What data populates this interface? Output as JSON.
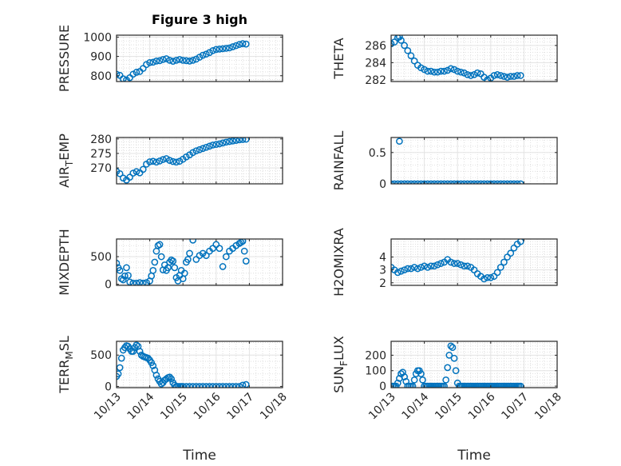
{
  "figure": {
    "title": "Figure 3 high",
    "xlabel_left": "Time",
    "xlabel_right": "Time",
    "marker_color": "#0072bd"
  },
  "chart_data": [
    {
      "type": "scatter",
      "name": "pressure",
      "ylabel": "PRESSURE",
      "xlim": [
        0,
        5
      ],
      "ylim": [
        770,
        1010
      ],
      "yticks": [
        800,
        900,
        1000
      ],
      "yticklabels": [
        "800",
        "900",
        "1000"
      ],
      "xticks": [
        0,
        1,
        2,
        3,
        4,
        5
      ],
      "x": [
        0.0,
        0.1,
        0.2,
        0.3,
        0.4,
        0.5,
        0.6,
        0.7,
        0.8,
        0.9,
        1.0,
        1.1,
        1.2,
        1.3,
        1.4,
        1.5,
        1.6,
        1.7,
        1.8,
        1.9,
        2.0,
        2.1,
        2.2,
        2.3,
        2.4,
        2.5,
        2.6,
        2.7,
        2.8,
        2.9,
        3.0,
        3.1,
        3.2,
        3.3,
        3.4,
        3.5,
        3.6,
        3.7,
        3.8,
        3.9
      ],
      "y": [
        808,
        802,
        784,
        778,
        790,
        808,
        818,
        822,
        838,
        858,
        868,
        870,
        876,
        878,
        884,
        888,
        880,
        875,
        880,
        884,
        880,
        878,
        876,
        880,
        886,
        896,
        906,
        912,
        920,
        930,
        936,
        938,
        940,
        942,
        944,
        950,
        956,
        962,
        966,
        964
      ]
    },
    {
      "type": "scatter",
      "name": "theta",
      "ylabel": "THETA",
      "xlim": [
        0,
        5
      ],
      "ylim": [
        281.8,
        287.2
      ],
      "yticks": [
        282,
        284,
        286
      ],
      "yticklabels": [
        "282",
        "284",
        "286"
      ],
      "xticks": [
        0,
        1,
        2,
        3,
        4,
        5
      ],
      "x": [
        0.0,
        0.1,
        0.2,
        0.25,
        0.3,
        0.4,
        0.5,
        0.6,
        0.7,
        0.8,
        0.9,
        1.0,
        1.1,
        1.2,
        1.3,
        1.4,
        1.5,
        1.6,
        1.7,
        1.8,
        1.9,
        2.0,
        2.1,
        2.2,
        2.3,
        2.4,
        2.5,
        2.6,
        2.7,
        2.8,
        2.9,
        3.0,
        3.1,
        3.2,
        3.3,
        3.4,
        3.5,
        3.6,
        3.7,
        3.8,
        3.9
      ],
      "y": [
        286.2,
        286.4,
        286.9,
        287.0,
        286.6,
        286.0,
        285.4,
        284.8,
        284.2,
        283.7,
        283.4,
        283.2,
        283.0,
        283.0,
        282.9,
        282.9,
        283.0,
        283.0,
        283.1,
        283.3,
        283.2,
        283.0,
        282.9,
        282.8,
        282.6,
        282.5,
        282.6,
        282.8,
        282.7,
        282.3,
        282.0,
        282.2,
        282.5,
        282.6,
        282.5,
        282.4,
        282.3,
        282.4,
        282.4,
        282.5,
        282.5
      ]
    },
    {
      "type": "scatter",
      "name": "air_temp",
      "ylabel": "AIR_TEMP",
      "ylabel_parts": [
        "AIR",
        "T",
        "EMP"
      ],
      "xlim": [
        0,
        5
      ],
      "ylim": [
        264.5,
        280.5
      ],
      "yticks": [
        270,
        275,
        280
      ],
      "yticklabels": [
        "270",
        "275",
        "280"
      ],
      "xticks": [
        0,
        1,
        2,
        3,
        4,
        5
      ],
      "x": [
        0.0,
        0.1,
        0.2,
        0.3,
        0.4,
        0.5,
        0.6,
        0.7,
        0.8,
        0.9,
        1.0,
        1.1,
        1.2,
        1.3,
        1.4,
        1.5,
        1.6,
        1.7,
        1.8,
        1.9,
        2.0,
        2.1,
        2.2,
        2.3,
        2.4,
        2.5,
        2.6,
        2.7,
        2.8,
        2.9,
        3.0,
        3.1,
        3.2,
        3.3,
        3.4,
        3.5,
        3.6,
        3.7,
        3.8,
        3.9
      ],
      "y": [
        268.8,
        268.0,
        266.5,
        265.8,
        266.8,
        268.2,
        268.7,
        268.3,
        269.5,
        271.3,
        272.1,
        272.3,
        272.0,
        272.4,
        272.9,
        273.2,
        272.6,
        272.2,
        272.0,
        272.3,
        273.0,
        273.8,
        274.5,
        275.3,
        275.9,
        276.3,
        276.7,
        277.1,
        277.5,
        277.9,
        278.1,
        278.3,
        278.6,
        278.9,
        279.1,
        279.3,
        279.5,
        279.7,
        279.8,
        279.9
      ]
    },
    {
      "type": "scatter",
      "name": "rainfall",
      "ylabel": "RAINFALL",
      "xlim": [
        0,
        5
      ],
      "ylim": [
        0,
        0.74
      ],
      "yticks": [
        0,
        0.5
      ],
      "yticklabels": [
        "0",
        "0.5"
      ],
      "xticks": [
        0,
        1,
        2,
        3,
        4,
        5
      ],
      "x": [
        0.0,
        0.1,
        0.2,
        0.25,
        0.3,
        0.4,
        0.5,
        0.6,
        0.7,
        0.8,
        0.9,
        1.0,
        1.1,
        1.2,
        1.3,
        1.4,
        1.5,
        1.6,
        1.7,
        1.8,
        1.9,
        2.0,
        2.1,
        2.2,
        2.3,
        2.4,
        2.5,
        2.6,
        2.7,
        2.8,
        2.9,
        3.0,
        3.1,
        3.2,
        3.3,
        3.4,
        3.5,
        3.6,
        3.7,
        3.8,
        3.9
      ],
      "y": [
        0,
        0,
        0,
        0.68,
        0,
        0,
        0,
        0,
        0,
        0,
        0,
        0,
        0,
        0,
        0,
        0,
        0,
        0,
        0,
        0,
        0,
        0,
        0,
        0,
        0,
        0,
        0,
        0,
        0,
        0,
        0,
        0,
        0,
        0,
        0,
        0,
        0,
        0,
        0,
        0,
        0
      ]
    },
    {
      "type": "scatter",
      "name": "mixdepth",
      "ylabel": "MIXDEPTH",
      "xlim": [
        0,
        5
      ],
      "ylim": [
        -20,
        820
      ],
      "yticks": [
        0,
        500
      ],
      "yticklabels": [
        "0",
        "500"
      ],
      "xticks": [
        0,
        1,
        2,
        3,
        4,
        5
      ],
      "x": [
        0.0,
        0.05,
        0.1,
        0.15,
        0.2,
        0.25,
        0.3,
        0.35,
        0.4,
        0.5,
        0.6,
        0.7,
        0.8,
        0.9,
        1.0,
        1.05,
        1.1,
        1.15,
        1.2,
        1.25,
        1.3,
        1.35,
        1.4,
        1.45,
        1.5,
        1.55,
        1.6,
        1.65,
        1.7,
        1.75,
        1.8,
        1.85,
        1.9,
        1.95,
        2.0,
        2.05,
        2.1,
        2.15,
        2.2,
        2.3,
        2.4,
        2.5,
        2.6,
        2.7,
        2.8,
        2.9,
        3.0,
        3.1,
        3.2,
        3.3,
        3.4,
        3.5,
        3.6,
        3.7,
        3.75,
        3.8,
        3.85,
        3.9
      ],
      "y": [
        380,
        300,
        250,
        100,
        80,
        150,
        300,
        160,
        40,
        20,
        20,
        30,
        20,
        30,
        60,
        150,
        250,
        400,
        600,
        700,
        720,
        500,
        260,
        350,
        250,
        300,
        400,
        440,
        420,
        300,
        120,
        60,
        160,
        250,
        100,
        200,
        400,
        450,
        560,
        800,
        450,
        520,
        560,
        520,
        600,
        650,
        720,
        650,
        320,
        500,
        600,
        650,
        700,
        740,
        760,
        780,
        600,
        420
      ]
    },
    {
      "type": "scatter",
      "name": "h2omixra",
      "ylabel": "H2OMIXRA",
      "xlim": [
        0,
        5
      ],
      "ylim": [
        1.8,
        5.4
      ],
      "yticks": [
        2,
        3,
        4
      ],
      "yticklabels": [
        "2",
        "3",
        "4"
      ],
      "xticks": [
        0,
        1,
        2,
        3,
        4,
        5
      ],
      "x": [
        0.0,
        0.1,
        0.2,
        0.3,
        0.4,
        0.5,
        0.6,
        0.7,
        0.8,
        0.9,
        1.0,
        1.1,
        1.2,
        1.3,
        1.4,
        1.5,
        1.6,
        1.7,
        1.8,
        1.9,
        2.0,
        2.1,
        2.2,
        2.3,
        2.4,
        2.5,
        2.6,
        2.7,
        2.8,
        2.9,
        3.0,
        3.1,
        3.2,
        3.3,
        3.4,
        3.5,
        3.6,
        3.7,
        3.8,
        3.9
      ],
      "y": [
        3.2,
        3.0,
        2.8,
        2.9,
        3.0,
        3.1,
        3.1,
        3.2,
        3.1,
        3.2,
        3.3,
        3.2,
        3.3,
        3.3,
        3.4,
        3.5,
        3.6,
        3.8,
        3.6,
        3.5,
        3.5,
        3.4,
        3.3,
        3.3,
        3.2,
        3.0,
        2.7,
        2.5,
        2.3,
        2.4,
        2.4,
        2.5,
        2.8,
        3.2,
        3.6,
        4.0,
        4.3,
        4.7,
        5.0,
        5.2
      ]
    },
    {
      "type": "scatter",
      "name": "terr_msl",
      "ylabel": "TERR_MSL",
      "ylabel_parts": [
        "TERR",
        "M",
        "SL"
      ],
      "xlim": [
        0,
        5
      ],
      "ylim": [
        -20,
        720
      ],
      "yticks": [
        0,
        500
      ],
      "yticklabels": [
        "0",
        "500"
      ],
      "xticks": [
        0,
        1,
        2,
        3,
        4,
        5
      ],
      "x": [
        0.0,
        0.05,
        0.1,
        0.15,
        0.2,
        0.25,
        0.3,
        0.35,
        0.4,
        0.45,
        0.5,
        0.55,
        0.6,
        0.65,
        0.7,
        0.75,
        0.8,
        0.85,
        0.9,
        0.95,
        1.0,
        1.05,
        1.1,
        1.15,
        1.2,
        1.25,
        1.3,
        1.35,
        1.4,
        1.45,
        1.5,
        1.55,
        1.6,
        1.65,
        1.7,
        1.75,
        1.8,
        1.85,
        1.9,
        1.95,
        2.0,
        2.1,
        2.2,
        2.3,
        2.4,
        2.5,
        2.6,
        2.7,
        2.8,
        2.9,
        3.0,
        3.1,
        3.2,
        3.3,
        3.4,
        3.5,
        3.6,
        3.7,
        3.8,
        3.9
      ],
      "y": [
        160,
        200,
        300,
        450,
        580,
        620,
        650,
        640,
        600,
        560,
        560,
        620,
        660,
        640,
        560,
        500,
        480,
        470,
        460,
        450,
        420,
        380,
        330,
        260,
        180,
        120,
        80,
        40,
        60,
        100,
        120,
        140,
        150,
        120,
        60,
        20,
        0,
        0,
        0,
        0,
        0,
        0,
        0,
        0,
        0,
        0,
        0,
        0,
        0,
        0,
        0,
        0,
        0,
        0,
        0,
        0,
        0,
        0,
        20,
        30
      ]
    },
    {
      "type": "scatter",
      "name": "sun_flux",
      "ylabel": "SUN_FLUX",
      "ylabel_parts": [
        "SUN",
        "F",
        "LUX"
      ],
      "xlim": [
        0,
        5
      ],
      "ylim": [
        -10,
        290
      ],
      "yticks": [
        0,
        100,
        200
      ],
      "yticklabels": [
        "0",
        "100",
        "200"
      ],
      "xticks": [
        0,
        1,
        2,
        3,
        4,
        5
      ],
      "xticklabels": [
        "10/13",
        "10/14",
        "10/15",
        "10/16",
        "10/17",
        "10/18"
      ],
      "x": [
        0.0,
        0.05,
        0.1,
        0.15,
        0.2,
        0.25,
        0.3,
        0.35,
        0.4,
        0.45,
        0.5,
        0.55,
        0.6,
        0.65,
        0.7,
        0.75,
        0.8,
        0.85,
        0.9,
        0.95,
        1.0,
        1.05,
        1.1,
        1.15,
        1.2,
        1.25,
        1.3,
        1.35,
        1.4,
        1.45,
        1.5,
        1.55,
        1.6,
        1.65,
        1.7,
        1.75,
        1.8,
        1.85,
        1.9,
        1.95,
        2.0,
        2.05,
        2.1,
        2.15,
        2.2,
        2.25,
        2.3,
        2.35,
        2.4,
        2.45,
        2.5,
        2.55,
        2.6,
        2.65,
        2.7,
        2.75,
        2.8,
        2.85,
        2.9,
        2.95,
        3.0,
        3.05,
        3.1,
        3.15,
        3.2,
        3.25,
        3.3,
        3.35,
        3.4,
        3.45,
        3.5,
        3.55,
        3.6,
        3.65,
        3.7,
        3.75,
        3.8,
        3.85,
        3.9
      ],
      "y": [
        0,
        0,
        0,
        0,
        20,
        50,
        80,
        90,
        60,
        30,
        0,
        0,
        0,
        0,
        40,
        80,
        100,
        100,
        80,
        40,
        0,
        0,
        0,
        0,
        0,
        0,
        0,
        0,
        0,
        0,
        0,
        0,
        0,
        40,
        120,
        200,
        260,
        250,
        180,
        100,
        20,
        0,
        0,
        0,
        0,
        0,
        0,
        0,
        0,
        0,
        0,
        0,
        0,
        0,
        0,
        0,
        0,
        0,
        0,
        0,
        0,
        0,
        0,
        0,
        0,
        0,
        0,
        0,
        0,
        0,
        0,
        0,
        0,
        0,
        0,
        0,
        0,
        0,
        0
      ]
    }
  ]
}
